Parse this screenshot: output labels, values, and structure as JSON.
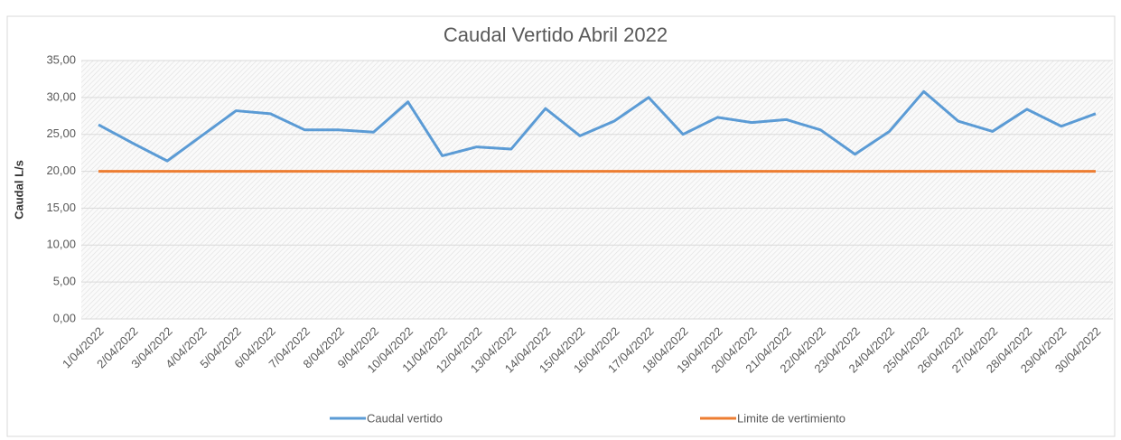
{
  "chart_data": {
    "type": "line",
    "title": "Caudal Vertido Abril 2022",
    "y_label": "Caudal L/s",
    "categories": [
      "1/04/2022",
      "2/04/2022",
      "3/04/2022",
      "4/04/2022",
      "5/04/2022",
      "6/04/2022",
      "7/04/2022",
      "8/04/2022",
      "9/04/2022",
      "10/04/2022",
      "11/04/2022",
      "12/04/2022",
      "13/04/2022",
      "14/04/2022",
      "15/04/2022",
      "16/04/2022",
      "17/04/2022",
      "18/04/2022",
      "19/04/2022",
      "20/04/2022",
      "21/04/2022",
      "22/04/2022",
      "23/04/2022",
      "24/04/2022",
      "25/04/2022",
      "26/04/2022",
      "27/04/2022",
      "28/04/2022",
      "29/04/2022",
      "30/04/2022"
    ],
    "series": [
      {
        "name": "Caudal vertido",
        "color": "#5b9bd5",
        "values": [
          26.3,
          23.8,
          21.4,
          24.8,
          28.2,
          27.8,
          25.6,
          25.6,
          25.3,
          29.4,
          22.1,
          23.3,
          23.0,
          28.5,
          24.8,
          26.8,
          30.0,
          25.0,
          27.3,
          26.6,
          27.0,
          25.6,
          22.3,
          25.4,
          30.8,
          26.8,
          25.4,
          28.4,
          26.1,
          27.8
        ]
      },
      {
        "name": "Limite de vertimiento",
        "color": "#ed7d31",
        "values": [
          20,
          20,
          20,
          20,
          20,
          20,
          20,
          20,
          20,
          20,
          20,
          20,
          20,
          20,
          20,
          20,
          20,
          20,
          20,
          20,
          20,
          20,
          20,
          20,
          20,
          20,
          20,
          20,
          20,
          20
        ]
      }
    ],
    "ylim": [
      0,
      35
    ],
    "yticks": [
      {
        "value": 0,
        "label": "0,00"
      },
      {
        "value": 5,
        "label": "5,00"
      },
      {
        "value": 10,
        "label": "10,00"
      },
      {
        "value": 15,
        "label": "15,00"
      },
      {
        "value": 20,
        "label": "20,00"
      },
      {
        "value": 25,
        "label": "25,00"
      },
      {
        "value": 30,
        "label": "30,00"
      },
      {
        "value": 35,
        "label": "35,00"
      }
    ],
    "grid": true,
    "legend": "bottom"
  }
}
